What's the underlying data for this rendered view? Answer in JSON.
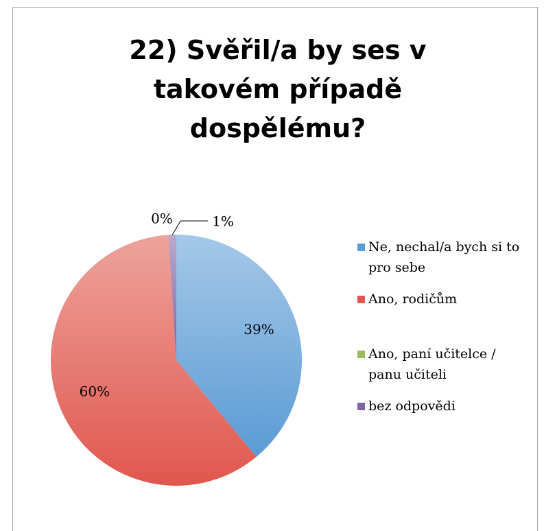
{
  "chart_data": {
    "type": "pie",
    "title": "22) Svěřil/a by ses v takovém případě dospělému?",
    "categories": [
      "Ne, nechal/a bych si to pro sebe",
      "Ano, rodičům",
      "Ano, paní učitelce / panu učiteli",
      "bez odpovědi"
    ],
    "values": [
      39,
      60,
      0,
      1
    ],
    "value_labels": [
      "39%",
      "60%",
      "0%",
      "1%"
    ],
    "colors": [
      "#5b9bd5",
      "#e0574d",
      "#9bbb59",
      "#8064a2"
    ],
    "legend": "right"
  }
}
